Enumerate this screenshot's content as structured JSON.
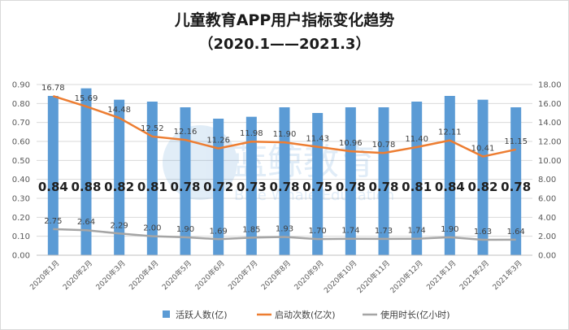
{
  "chart_data": {
    "type": "bar",
    "title": "儿童教育APP用户指标变化趋势",
    "subtitle": "（2020.1——2021.3）",
    "categories": [
      "2020年1月",
      "2020年2月",
      "2020年3月",
      "2020年4月",
      "2020年5月",
      "2020年6月",
      "2020年7月",
      "2020年8月",
      "2020年9月",
      "2020年10月",
      "2020年11月",
      "2020年12月",
      "2021年1月",
      "2021年2月",
      "2021年3月"
    ],
    "series": [
      {
        "name": "活跃人数(亿)",
        "type": "bar",
        "axis": "left",
        "color": "#5b9bd5",
        "values": [
          0.84,
          0.88,
          0.82,
          0.81,
          0.78,
          0.72,
          0.73,
          0.78,
          0.75,
          0.78,
          0.78,
          0.81,
          0.84,
          0.82,
          0.78
        ],
        "labels": [
          "0.84",
          "0.88",
          "0.82",
          "0.81",
          "0.78",
          "0.72",
          "0.73",
          "0.78",
          "0.75",
          "0.78",
          "0.78",
          "0.81",
          "0.84",
          "0.82",
          "0.78"
        ]
      },
      {
        "name": "启动次数(亿次)",
        "type": "line",
        "axis": "right",
        "color": "#ed7d31",
        "values": [
          16.78,
          15.69,
          14.48,
          12.52,
          12.16,
          11.26,
          11.98,
          11.9,
          11.43,
          10.96,
          10.78,
          11.4,
          12.11,
          10.41,
          11.15
        ],
        "labels": [
          "16.78",
          "15.69",
          "14.48",
          "12.52",
          "12.16",
          "11.26",
          "11.98",
          "11.90",
          "11.43",
          "10.96",
          "10.78",
          "11.40",
          "12.11",
          "10.41",
          "11.15"
        ]
      },
      {
        "name": "使用时长(亿小时)",
        "type": "line",
        "axis": "right",
        "color": "#a5a5a5",
        "values": [
          2.75,
          2.64,
          2.29,
          2.0,
          1.9,
          1.69,
          1.85,
          1.93,
          1.7,
          1.74,
          1.73,
          1.74,
          1.9,
          1.63,
          1.64
        ],
        "labels": [
          "2.75",
          "2.64",
          "2.29",
          "2.00",
          "1.90",
          "1.69",
          "1.85",
          "1.93",
          "1.70",
          "1.74",
          "1.73",
          "1.74",
          "1.90",
          "1.63",
          "1.64"
        ]
      }
    ],
    "y_left": {
      "min": 0,
      "max": 0.9,
      "ticks": [
        "0.00",
        "0.10",
        "0.20",
        "0.30",
        "0.40",
        "0.50",
        "0.60",
        "0.70",
        "0.80",
        "0.90"
      ]
    },
    "y_right": {
      "min": 0,
      "max": 18,
      "ticks": [
        "0.00",
        "2.00",
        "4.00",
        "6.00",
        "8.00",
        "10.00",
        "12.00",
        "14.00",
        "16.00",
        "18.00"
      ]
    },
    "grid": true,
    "legend_position": "bottom"
  },
  "watermark": {
    "cn": "蓝鲸教育",
    "en": "Blue Whale Education"
  }
}
